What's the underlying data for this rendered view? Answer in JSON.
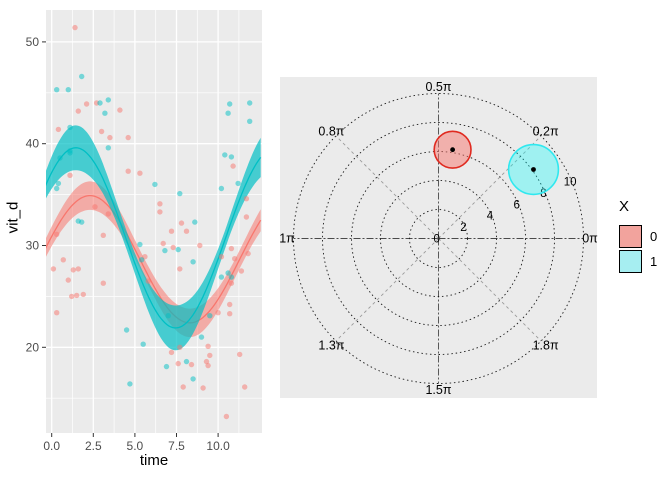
{
  "chart_data": [
    {
      "id": "scatter-smooth-plot",
      "type": "scatter",
      "title": "",
      "xlabel": "time",
      "ylabel": "vit_d",
      "xlim": [
        -0.4,
        12.65
      ],
      "ylim": [
        11.5,
        53.0
      ],
      "x_ticks": [
        0.0,
        2.5,
        5.0,
        7.5,
        10.0
      ],
      "x_tick_labels": [
        "0.0",
        "2.5",
        "5.0",
        "7.5",
        "10.0"
      ],
      "x_minor_ticks": [
        1.25,
        3.75,
        6.25,
        8.75,
        11.25
      ],
      "y_ticks": [
        20,
        30,
        40,
        50
      ],
      "y_tick_labels": [
        "20",
        "30",
        "40",
        "50"
      ],
      "y_minor_ticks": [
        15,
        25,
        35,
        45
      ],
      "grid": true,
      "panel_bg": "#EBEBEB",
      "grid_color": "#FFFFFF",
      "tick_label_color": "#4D4D4D",
      "series": [
        {
          "name": "0",
          "color": "#F8766D",
          "ribbon_opacity": 0.55,
          "point_opacity": 0.5,
          "smooth": {
            "model": "cosinor",
            "mesor": 28.65,
            "amplitude": 6.25,
            "period": 12,
            "peak_t": 2.3,
            "band_base": 0.9,
            "band_extra": 0.5
          },
          "points": [
            [
              0.1,
              27.7
            ],
            [
              0.3,
              31.1
            ],
            [
              0.3,
              23.4
            ],
            [
              0.4,
              41.4
            ],
            [
              0.7,
              28.6
            ],
            [
              1.0,
              26.6
            ],
            [
              1.1,
              36.9
            ],
            [
              1.2,
              25.0
            ],
            [
              1.3,
              27.6
            ],
            [
              1.4,
              51.4
            ],
            [
              1.5,
              25.1
            ],
            [
              1.6,
              43.2
            ],
            [
              1.6,
              27.7
            ],
            [
              1.9,
              25.2
            ],
            [
              2.1,
              43.9
            ],
            [
              2.6,
              33.8
            ],
            [
              2.7,
              44.0
            ],
            [
              3.0,
              41.2
            ],
            [
              3.1,
              31.0
            ],
            [
              3.1,
              26.3
            ],
            [
              3.4,
              33.1
            ],
            [
              3.5,
              40.6
            ],
            [
              4.1,
              43.3
            ],
            [
              4.6,
              40.6
            ],
            [
              4.6,
              37.3
            ],
            [
              5.3,
              37.1
            ],
            [
              5.6,
              28.9
            ],
            [
              5.8,
              26.5
            ],
            [
              6.5,
              34.1
            ],
            [
              6.5,
              33.3
            ],
            [
              6.7,
              30.2
            ],
            [
              7.2,
              31.4
            ],
            [
              7.2,
              19.5
            ],
            [
              7.3,
              29.8
            ],
            [
              7.6,
              18.4
            ],
            [
              7.7,
              27.7
            ],
            [
              7.7,
              20.0
            ],
            [
              7.8,
              32.2
            ],
            [
              7.9,
              16.1
            ],
            [
              8.1,
              31.4
            ],
            [
              8.4,
              18.3
            ],
            [
              8.9,
              30.0
            ],
            [
              9.1,
              16.0
            ],
            [
              9.3,
              18.6
            ],
            [
              9.4,
              20.1
            ],
            [
              9.4,
              18.2
            ],
            [
              9.5,
              19.2
            ],
            [
              10.0,
              23.4
            ],
            [
              10.2,
              28.9
            ],
            [
              10.5,
              13.2
            ],
            [
              10.7,
              24.2
            ],
            [
              10.7,
              23.3
            ],
            [
              10.8,
              29.7
            ],
            [
              10.8,
              26.3
            ],
            [
              10.9,
              37.8
            ],
            [
              11.0,
              28.7
            ],
            [
              11.3,
              19.3
            ],
            [
              11.4,
              27.5
            ],
            [
              11.6,
              16.1
            ],
            [
              11.7,
              34.6
            ],
            [
              11.7,
              32.8
            ],
            [
              11.8,
              29.2
            ]
          ]
        },
        {
          "name": "1",
          "color": "#00BFC4",
          "ribbon_opacity": 0.7,
          "point_opacity": 0.5,
          "smooth": {
            "model": "cosinor",
            "mesor": 30.75,
            "amplitude": 8.85,
            "period": 12,
            "peak_t": 1.45,
            "band_base": 0.9,
            "band_extra": 1.3
          },
          "points": [
            [
              0.3,
              45.3
            ],
            [
              0.3,
              35.6
            ],
            [
              0.4,
              36.1
            ],
            [
              0.5,
              38.6
            ],
            [
              1.0,
              45.3
            ],
            [
              1.1,
              41.6
            ],
            [
              1.1,
              39.3
            ],
            [
              1.1,
              39.1
            ],
            [
              1.6,
              32.4
            ],
            [
              1.8,
              46.6
            ],
            [
              1.8,
              32.3
            ],
            [
              2.9,
              44.0
            ],
            [
              3.2,
              43.0
            ],
            [
              3.4,
              44.3
            ],
            [
              3.4,
              39.6
            ],
            [
              4.5,
              21.7
            ],
            [
              4.7,
              16.4
            ],
            [
              5.3,
              30.1
            ],
            [
              5.4,
              28.6
            ],
            [
              5.5,
              20.3
            ],
            [
              6.2,
              36.0
            ],
            [
              6.8,
              29.5
            ],
            [
              6.9,
              18.1
            ],
            [
              7.0,
              23.1
            ],
            [
              7.6,
              29.6
            ],
            [
              7.7,
              35.1
            ],
            [
              8.1,
              18.6
            ],
            [
              8.5,
              28.4
            ],
            [
              8.5,
              16.9
            ],
            [
              8.6,
              32.3
            ],
            [
              9.0,
              21.0
            ],
            [
              9.5,
              23.1
            ],
            [
              10.2,
              35.6
            ],
            [
              10.2,
              26.9
            ],
            [
              10.4,
              38.9
            ],
            [
              10.6,
              43.0
            ],
            [
              10.6,
              27.3
            ],
            [
              10.7,
              43.9
            ],
            [
              10.8,
              38.7
            ],
            [
              10.8,
              26.9
            ],
            [
              11.2,
              36.1
            ],
            [
              11.9,
              44.0
            ],
            [
              11.9,
              42.2
            ]
          ]
        }
      ]
    },
    {
      "id": "polar-phase-plot",
      "type": "polar",
      "panel_bg": "#EBEBEB",
      "r_ticks": [
        0,
        2,
        4,
        6,
        8,
        10
      ],
      "r_tick_labels": [
        "0",
        "2",
        "4",
        "6",
        "8",
        "10"
      ],
      "r_label_angle_deg": 23,
      "theta_labels": [
        {
          "label": "0π",
          "angle_deg": 0
        },
        {
          "label": "0.2π",
          "angle_deg": 45
        },
        {
          "label": "0.5π",
          "angle_deg": 90
        },
        {
          "label": "0.8π",
          "angle_deg": 135
        },
        {
          "label": "1π",
          "angle_deg": 180
        },
        {
          "label": "1.3π",
          "angle_deg": 225
        },
        {
          "label": "1.5π",
          "angle_deg": 270
        },
        {
          "label": "1.8π",
          "angle_deg": 315
        }
      ],
      "markers": [
        {
          "series": "0",
          "r": 6.2,
          "theta_pi": 0.45,
          "circle_radius_units": 1.27,
          "fill": "#F8766D",
          "fill_opacity": 0.5,
          "stroke": "#E02A20"
        },
        {
          "series": "1",
          "r": 8.1,
          "theta_pi": 0.2,
          "circle_radius_units": 1.72,
          "fill": "#00FFFF",
          "fill_opacity": 0.32,
          "stroke": "#2FE8EF"
        }
      ],
      "center_dot_color": "#000000"
    }
  ],
  "legend": {
    "title": "X",
    "items": [
      {
        "label": "0",
        "swatch_color": "#F2A39D"
      },
      {
        "label": "1",
        "swatch_color": "#A6EEF1"
      }
    ]
  }
}
